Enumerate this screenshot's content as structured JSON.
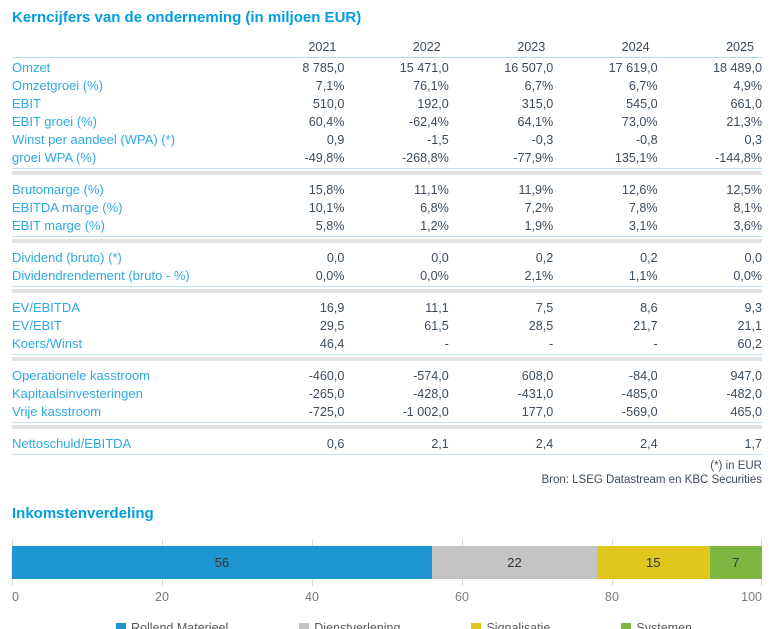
{
  "colors": {
    "title_blue": "#009EE3",
    "row_label_blue": "#2FA9E1",
    "value_dark": "#3D4C5C",
    "section_line_blue": "#BFE3F5",
    "section_band_gray": "#E3E3E3"
  },
  "report": {
    "title": "Kerncijfers van de onderneming (in miljoen EUR)"
  },
  "table": {
    "years": [
      "2021",
      "2022",
      "2023",
      "2024",
      "2025"
    ],
    "sections": [
      {
        "rows": [
          {
            "label": "Omzet",
            "values": [
              "8 785,0",
              "15 471,0",
              "16 507,0",
              "17 619,0",
              "18 489,0"
            ]
          },
          {
            "label": "Omzetgroei (%)",
            "values": [
              "7,1%",
              "76,1%",
              "6,7%",
              "6,7%",
              "4,9%"
            ]
          },
          {
            "label": "EBIT",
            "values": [
              "510,0",
              "192,0",
              "315,0",
              "545,0",
              "661,0"
            ]
          },
          {
            "label": "EBIT groei (%)",
            "values": [
              "60,4%",
              "-62,4%",
              "64,1%",
              "73,0%",
              "21,3%"
            ]
          },
          {
            "label": "Winst per aandeel (WPA) (*)",
            "values": [
              "0,9",
              "-1,5",
              "-0,3",
              "-0,8",
              "0,3"
            ]
          },
          {
            "label": "groei WPA (%)",
            "values": [
              "-49,8%",
              "-268,8%",
              "-77,9%",
              "135,1%",
              "-144,8%"
            ]
          }
        ]
      },
      {
        "rows": [
          {
            "label": "Brutomarge (%)",
            "values": [
              "15,8%",
              "11,1%",
              "11,9%",
              "12,6%",
              "12,5%"
            ]
          },
          {
            "label": "EBITDA marge (%)",
            "values": [
              "10,1%",
              "6,8%",
              "7,2%",
              "7,8%",
              "8,1%"
            ]
          },
          {
            "label": "EBIT marge (%)",
            "values": [
              "5,8%",
              "1,2%",
              "1,9%",
              "3,1%",
              "3,6%"
            ]
          }
        ]
      },
      {
        "rows": [
          {
            "label": "Dividend (bruto) (*)",
            "values": [
              "0,0",
              "0,0",
              "0,2",
              "0,2",
              "0,0"
            ]
          },
          {
            "label": "Dividendrendement (bruto - %)",
            "values": [
              "0,0%",
              "0,0%",
              "2,1%",
              "1,1%",
              "0,0%"
            ]
          }
        ]
      },
      {
        "rows": [
          {
            "label": "EV/EBITDA",
            "values": [
              "16,9",
              "11,1",
              "7,5",
              "8,6",
              "9,3"
            ]
          },
          {
            "label": "EV/EBIT",
            "values": [
              "29,5",
              "61,5",
              "28,5",
              "21,7",
              "21,1"
            ]
          },
          {
            "label": "Koers/Winst",
            "values": [
              "46,4",
              "-",
              "-",
              "-",
              "60,2"
            ]
          }
        ]
      },
      {
        "rows": [
          {
            "label": "Operationele kasstroom",
            "values": [
              "-460,0",
              "-574,0",
              "608,0",
              "-84,0",
              "947,0"
            ]
          },
          {
            "label": "Kapitaalsinvesteringen",
            "values": [
              "-265,0",
              "-428,0",
              "-431,0",
              "-485,0",
              "-482,0"
            ]
          },
          {
            "label": "Vrije kasstroom",
            "values": [
              "-725,0",
              "-1 002,0",
              "177,0",
              "-569,0",
              "465,0"
            ]
          }
        ]
      },
      {
        "rows": [
          {
            "label": "Nettoschuld/EBITDA",
            "values": [
              "0,6",
              "2,1",
              "2,4",
              "2,4",
              "1,7"
            ]
          }
        ]
      }
    ]
  },
  "footnotes": {
    "line1": "(*) in EUR",
    "line2": "Bron: LSEG Datastream en KBC Securities"
  },
  "chart_data": {
    "type": "bar",
    "orientation": "horizontal-stacked",
    "title": "Inkomstenverdeling",
    "segments": [
      {
        "label": "Rollend Materieel",
        "value": 56,
        "color": "#1E96D2"
      },
      {
        "label": "Dienstverlening",
        "value": 22,
        "color": "#C3C3C6"
      },
      {
        "label": "Signalisatie",
        "value": 15,
        "color": "#E0C71E"
      },
      {
        "label": "Systemen",
        "value": 7,
        "color": "#7DB742"
      }
    ],
    "x_ticks": [
      0,
      20,
      40,
      60,
      80,
      100
    ],
    "xlim": [
      0,
      100
    ],
    "grid": true,
    "legend_position": "bottom"
  }
}
